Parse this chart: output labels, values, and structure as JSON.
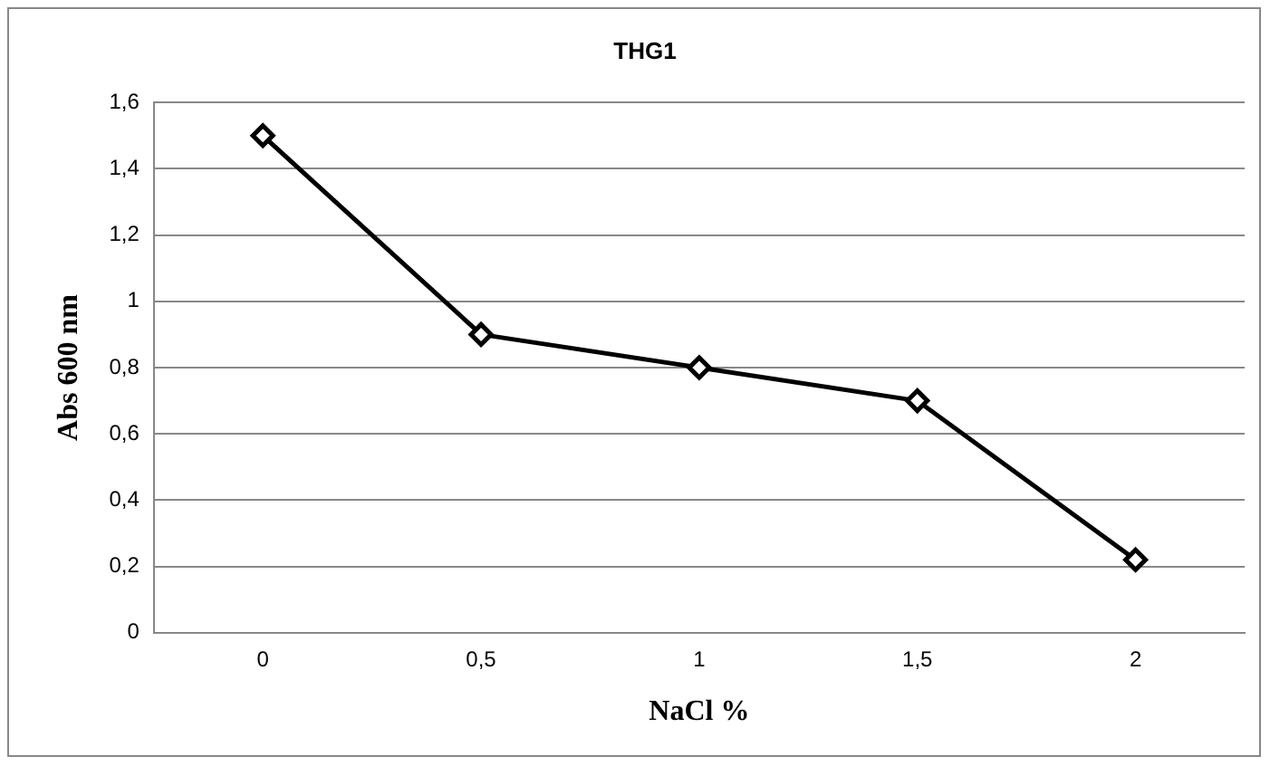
{
  "chart_data": {
    "type": "line",
    "title": "THG1",
    "xlabel": "NaCl %",
    "ylabel": "Abs 600 nm",
    "categories": [
      "0",
      "0,5",
      "1",
      "1,5",
      "2"
    ],
    "series": [
      {
        "color": "#000000",
        "values": [
          1.5,
          0.9,
          0.8,
          0.7,
          0.22
        ]
      }
    ],
    "ylim": [
      0,
      1.6
    ],
    "yticks": [
      0,
      {
        "value": 0.2,
        "label": "0,2"
      },
      {
        "value": 0.4,
        "label": "0,4"
      },
      {
        "value": 0.6,
        "label": "0,6"
      },
      {
        "value": 0.8,
        "label": "0,8"
      },
      1,
      {
        "value": 1.2,
        "label": "1,2"
      },
      {
        "value": 1.4,
        "label": "1,4"
      },
      {
        "value": 1.6,
        "label": "1,6"
      }
    ],
    "grid": "y",
    "legend": false,
    "marker": "diamond",
    "line_style": "solid"
  }
}
